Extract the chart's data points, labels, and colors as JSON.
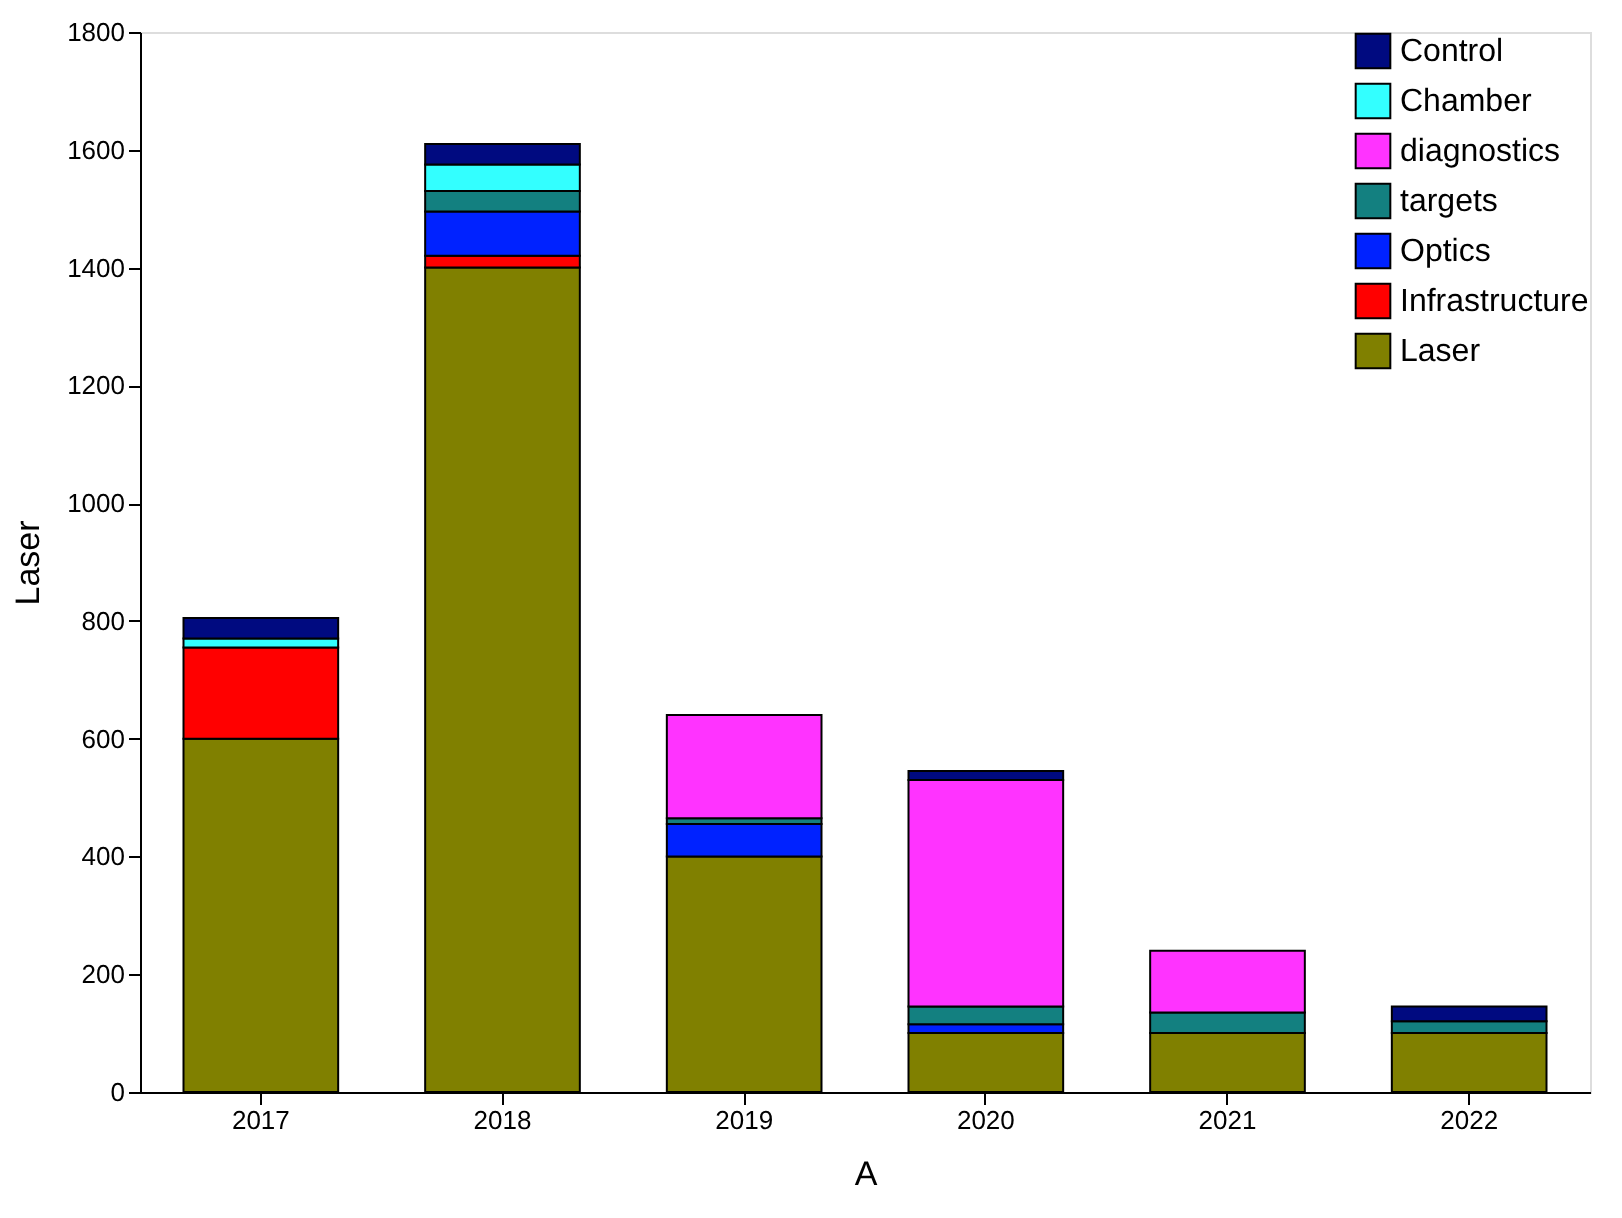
{
  "chart_data": {
    "type": "bar",
    "stacked": true,
    "xlabel": "A",
    "ylabel": "Laser",
    "categories": [
      "2017",
      "2018",
      "2019",
      "2020",
      "2021",
      "2022"
    ],
    "series": [
      {
        "name": "Laser",
        "color": "#808000",
        "values": [
          600,
          1400,
          400,
          100,
          100,
          100
        ]
      },
      {
        "name": "Infrastructure",
        "color": "#ff0000",
        "values": [
          155,
          20,
          null,
          null,
          null,
          null
        ]
      },
      {
        "name": "Optics",
        "color": "#0022ff",
        "values": [
          null,
          75,
          55,
          15,
          null,
          null
        ]
      },
      {
        "name": "targets",
        "color": "#138080",
        "values": [
          null,
          35,
          10,
          30,
          35,
          20
        ]
      },
      {
        "name": "diagnostics",
        "color": "#ff33ff",
        "values": [
          null,
          null,
          175,
          385,
          105,
          null
        ]
      },
      {
        "name": "Chamber",
        "color": "#33ffff",
        "values": [
          15,
          45,
          null,
          null,
          null,
          null
        ]
      },
      {
        "name": "Control",
        "color": "#000a80",
        "values": [
          35,
          35,
          null,
          15,
          null,
          25
        ]
      }
    ],
    "ylim": [
      0,
      1800
    ],
    "yticks": [
      0,
      200,
      400,
      600,
      800,
      1000,
      1200,
      1400,
      1600,
      1800
    ],
    "grid": false,
    "legend": "top right"
  }
}
